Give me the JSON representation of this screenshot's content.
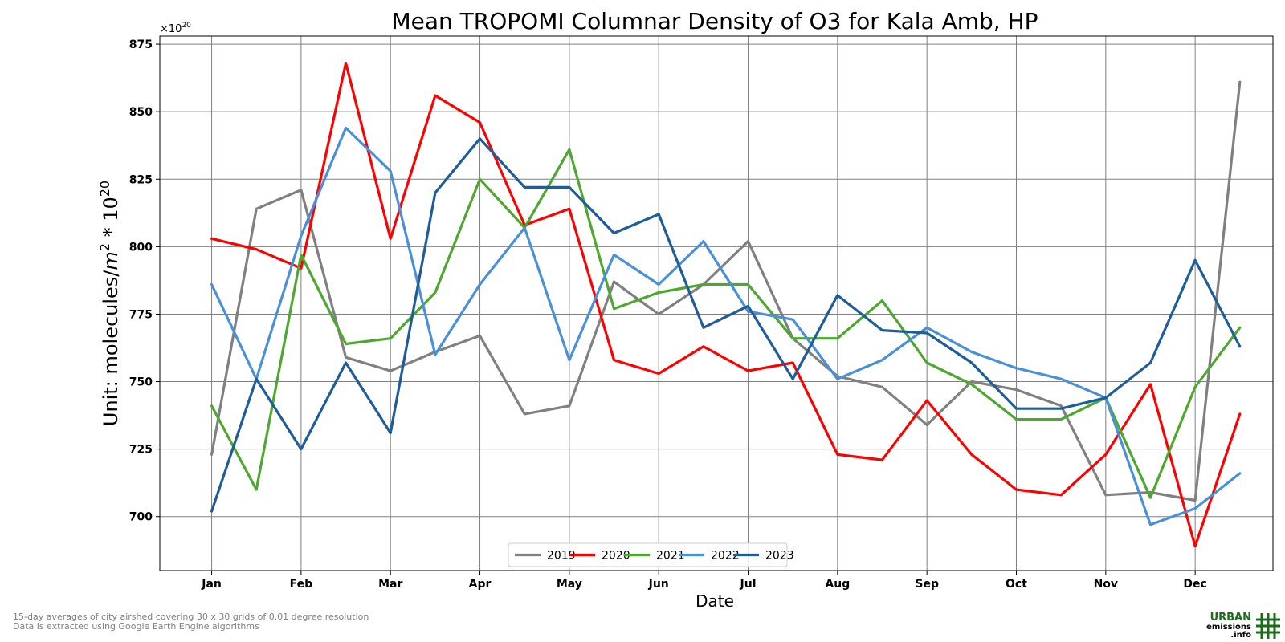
{
  "chart_data": {
    "type": "line",
    "title": "Mean TROPOMI Columnar Density of O3 for Kala Amb, HP",
    "xlabel": "Date",
    "ylabel_text": "Unit: molecules/",
    "ylabel_m": "m",
    "ylabel_m_exp": "2",
    "ylabel_times": " * 10",
    "ylabel_exp": "20",
    "offset_text": "×10",
    "offset_exp": "20",
    "ylim": [
      680,
      878
    ],
    "xlim": [
      -0.58,
      11.87
    ],
    "y_ticks": [
      700,
      725,
      750,
      775,
      800,
      825,
      850,
      875
    ],
    "y_tick_labels": [
      "700",
      "725",
      "750",
      "775",
      "800",
      "825",
      "850",
      "875"
    ],
    "x_tick_labels": [
      "Jan",
      "Feb",
      "Mar",
      "Apr",
      "May",
      "Jun",
      "Jul",
      "Aug",
      "Sep",
      "Oct",
      "Nov",
      "Dec"
    ],
    "x": [
      0,
      0.5,
      1,
      1.5,
      2,
      2.5,
      3,
      3.5,
      4,
      4.5,
      5,
      5.5,
      6,
      6.5,
      7,
      7.5,
      8,
      8.5,
      9,
      9.5,
      10,
      10.5,
      11,
      11.5
    ],
    "grid": true,
    "legend_position": "lower-center",
    "series": [
      {
        "name": "2019",
        "color": "#808080",
        "values": [
          723,
          814,
          821,
          759,
          754,
          761,
          767,
          738,
          741,
          787,
          775,
          786,
          802,
          766,
          752,
          748,
          734,
          750,
          747,
          741,
          708,
          709,
          706,
          861
        ]
      },
      {
        "name": "2020",
        "color": "#ff0000",
        "values": [
          803,
          799,
          792,
          868,
          803,
          856,
          846,
          808,
          814,
          758,
          753,
          763,
          754,
          757,
          723,
          721,
          743,
          723,
          710,
          708,
          723,
          749,
          689,
          738
        ]
      },
      {
        "name": "2021",
        "color": "#4ea72e",
        "values": [
          741,
          710,
          797,
          764,
          766,
          783,
          825,
          807,
          836,
          777,
          783,
          786,
          786,
          766,
          766,
          780,
          757,
          749,
          736,
          736,
          744,
          707,
          748,
          770
        ]
      },
      {
        "name": "2022",
        "color": "#4a90d9",
        "values": [
          786,
          751,
          804,
          844,
          828,
          760,
          786,
          807,
          758,
          797,
          786,
          802,
          776,
          773,
          751,
          758,
          770,
          761,
          755,
          751,
          744,
          697,
          703,
          716
        ]
      },
      {
        "name": "2023",
        "color": "#1f5d99",
        "values": [
          702,
          751,
          725,
          757,
          731,
          820,
          840,
          822,
          822,
          805,
          812,
          770,
          778,
          751,
          782,
          769,
          768,
          757,
          740,
          740,
          744,
          757,
          795,
          763
        ]
      }
    ]
  },
  "footnotes": [
    "15-day averages of city airshed covering 30 x 30 grids of 0.01 degree resolution",
    "Data is extracted using Google Earth Engine algorithms"
  ],
  "logo": {
    "line1": "URBAN",
    "line2": "emissions",
    "line3": ".info",
    "color": "#1a6b1a"
  }
}
